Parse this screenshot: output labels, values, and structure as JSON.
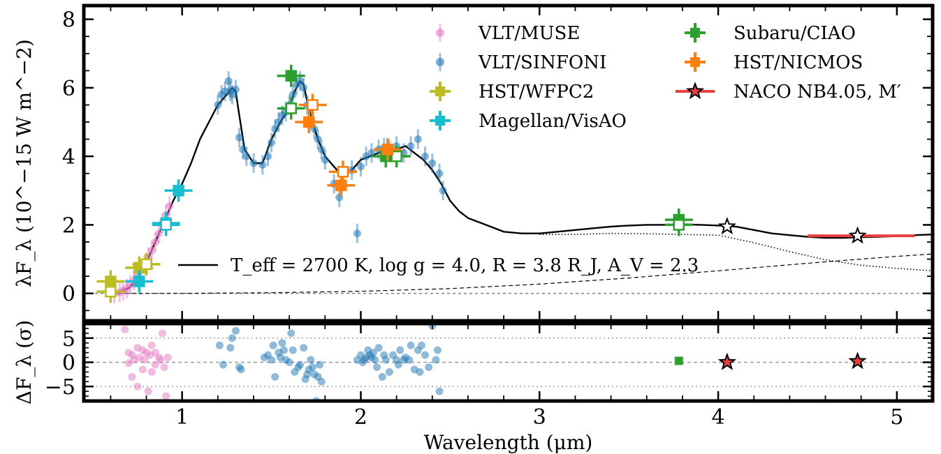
{
  "chart_data": [
    {
      "type": "scatter",
      "panel": "spectrum",
      "xlim": [
        0.45,
        5.2
      ],
      "ylim": [
        -0.8,
        8.4
      ],
      "yticks": [
        0,
        2,
        4,
        6,
        8
      ],
      "ylabel": "λF_λ (10^−15 W m^−2)",
      "grid": false,
      "legend_position": "top-right",
      "model_label": "T_eff = 2700 K, log g = 4.0, R = 3.8 R_J, A_V = 2.3",
      "model_curve": {
        "x": [
          0.6,
          0.65,
          0.7,
          0.75,
          0.8,
          0.85,
          0.9,
          0.95,
          1.0,
          1.05,
          1.1,
          1.15,
          1.2,
          1.25,
          1.28,
          1.3,
          1.32,
          1.35,
          1.4,
          1.45,
          1.5,
          1.55,
          1.6,
          1.63,
          1.66,
          1.68,
          1.7,
          1.73,
          1.76,
          1.8,
          1.85,
          1.9,
          1.95,
          2.0,
          2.05,
          2.1,
          2.15,
          2.2,
          2.25,
          2.3,
          2.35,
          2.4,
          2.45,
          2.5,
          2.55,
          2.6,
          2.7,
          2.8,
          2.9,
          3.0,
          3.1,
          3.2,
          3.3,
          3.4,
          3.5,
          3.6,
          3.7,
          3.8,
          3.9,
          4.0,
          4.1,
          4.2,
          4.3,
          4.4,
          4.5,
          4.6,
          4.7,
          4.8,
          4.9,
          5.0,
          5.1,
          5.2
        ],
        "y": [
          0.0,
          0.05,
          0.15,
          0.4,
          0.9,
          1.5,
          2.1,
          2.7,
          3.2,
          3.8,
          4.5,
          5.0,
          5.5,
          5.8,
          6.0,
          5.9,
          5.2,
          4.2,
          3.8,
          3.8,
          4.5,
          5.0,
          5.4,
          5.9,
          6.2,
          6.1,
          5.6,
          5.0,
          4.5,
          4.0,
          3.7,
          3.4,
          3.6,
          3.9,
          4.0,
          4.1,
          4.2,
          4.2,
          4.3,
          4.1,
          3.9,
          3.6,
          3.2,
          2.7,
          2.4,
          2.2,
          2.0,
          1.8,
          1.75,
          1.75,
          1.8,
          1.85,
          1.9,
          1.95,
          1.98,
          2.0,
          2.0,
          2.02,
          2.0,
          1.98,
          1.95,
          1.85,
          1.75,
          1.7,
          1.65,
          1.62,
          1.62,
          1.64,
          1.65,
          1.67,
          1.7,
          1.72
        ]
      },
      "photosphere_curve": {
        "x": [
          3.0,
          3.2,
          3.4,
          3.6,
          3.8,
          4.0,
          4.2,
          4.4,
          4.6,
          4.8,
          5.0,
          5.2
        ],
        "y": [
          1.72,
          1.72,
          1.75,
          1.74,
          1.72,
          1.7,
          1.48,
          1.22,
          0.98,
          0.82,
          0.73,
          0.66
        ]
      },
      "disk_curve": {
        "x": [
          0.6,
          1.0,
          1.5,
          2.0,
          2.5,
          3.0,
          3.5,
          4.0,
          4.5,
          5.0,
          5.2
        ],
        "y": [
          0.0,
          0.0,
          0.02,
          0.06,
          0.14,
          0.27,
          0.45,
          0.66,
          0.88,
          1.08,
          1.15
        ]
      },
      "series": [
        {
          "name": "VLT/MUSE",
          "color": "#e377c2",
          "marker": "circle",
          "x": [
            0.62,
            0.65,
            0.67,
            0.69,
            0.71,
            0.73,
            0.75,
            0.77,
            0.79,
            0.81,
            0.83,
            0.85,
            0.87,
            0.89,
            0.91,
            0.93
          ],
          "y": [
            0.0,
            0.03,
            0.08,
            0.14,
            0.25,
            0.38,
            0.52,
            0.68,
            0.85,
            1.05,
            1.25,
            1.5,
            1.75,
            2.05,
            2.3,
            2.55
          ]
        },
        {
          "name": "VLT/SINFONI",
          "color": "#1f77b4",
          "marker": "circle",
          "x": [
            1.2,
            1.22,
            1.24,
            1.26,
            1.27,
            1.28,
            1.3,
            1.32,
            1.34,
            1.36,
            1.4,
            1.45,
            1.48,
            1.5,
            1.52,
            1.54,
            1.56,
            1.58,
            1.6,
            1.62,
            1.64,
            1.66,
            1.68,
            1.7,
            1.72,
            1.74,
            1.76,
            1.78,
            1.8,
            1.85,
            1.88,
            1.95,
            1.98,
            2.0,
            2.03,
            2.06,
            2.1,
            2.13,
            2.16,
            2.2,
            2.24,
            2.28,
            2.32,
            2.36,
            2.4,
            2.44,
            2.46
          ],
          "y": [
            5.5,
            5.8,
            5.9,
            6.2,
            5.9,
            5.8,
            5.95,
            4.55,
            4.2,
            4.0,
            3.8,
            3.75,
            4.0,
            4.4,
            4.8,
            5.0,
            5.2,
            5.3,
            5.5,
            5.8,
            6.1,
            6.2,
            6.0,
            5.5,
            5.1,
            4.8,
            4.5,
            4.2,
            3.9,
            3.2,
            2.8,
            3.6,
            1.75,
            3.7,
            4.0,
            4.1,
            4.2,
            4.25,
            4.2,
            4.3,
            4.1,
            4.3,
            4.5,
            4.0,
            3.8,
            3.5,
            3.0
          ]
        },
        {
          "name": "HST/WFPC2",
          "color": "#bcbd22",
          "marker": "square",
          "x": [
            0.6,
            0.76,
            0.8,
            0.6,
            0.8
          ],
          "y": [
            0.35,
            0.75,
            0.85,
            0.05,
            0.85
          ]
        },
        {
          "name": "Magellan/VisAO",
          "color": "#17becf",
          "marker": "square",
          "x": [
            0.76,
            0.91,
            0.98,
            0.91
          ],
          "y": [
            0.35,
            2.05,
            3.0,
            2.0
          ]
        },
        {
          "name": "Subaru/CIAO",
          "color": "#2ca02c",
          "marker": "square",
          "x": [
            1.61,
            1.61,
            2.14,
            2.2,
            3.78,
            3.78
          ],
          "y": [
            6.35,
            5.4,
            4.0,
            4.0,
            2.15,
            2.0
          ]
        },
        {
          "name": "HST/NICMOS",
          "color": "#ff7f0e",
          "marker": "square",
          "x": [
            1.71,
            1.73,
            1.89,
            1.9,
            2.15
          ],
          "y": [
            5.0,
            5.5,
            3.15,
            3.55,
            4.2
          ]
        },
        {
          "name": "NACO NB4.05, M′",
          "color": "#e8403c",
          "marker": "star",
          "x": [
            4.05,
            4.78
          ],
          "y": [
            1.95,
            1.68
          ]
        }
      ]
    },
    {
      "type": "scatter",
      "panel": "residuals",
      "xlim": [
        0.45,
        5.2
      ],
      "ylim": [
        -8,
        8
      ],
      "yticks": [
        -5,
        0,
        5
      ],
      "xticks": [
        1,
        2,
        3,
        4,
        5
      ],
      "xlabel": "Wavelength (μm)",
      "ylabel": "ΔF_λ (σ)",
      "series": [
        {
          "name": "VLT/MUSE",
          "color": "#e377c2",
          "x": [
            0.68,
            0.7,
            0.7,
            0.72,
            0.72,
            0.73,
            0.75,
            0.75,
            0.76,
            0.78,
            0.78,
            0.79,
            0.8,
            0.81,
            0.82,
            0.83,
            0.83,
            0.85,
            0.85,
            0.87,
            0.88,
            0.89,
            0.9,
            0.91,
            0.92
          ],
          "y": [
            6.8,
            2.0,
            -0.2,
            1.5,
            -3.0,
            0.5,
            -5.0,
            3.0,
            1.0,
            2.5,
            -1.5,
            0.5,
            2.0,
            -6.0,
            1.5,
            3.5,
            -2.0,
            2.0,
            -0.5,
            1.0,
            0.5,
            6.0,
            -1.0,
            -7.0,
            1.0
          ]
        },
        {
          "name": "VLT/SINFONI",
          "color": "#1f77b4",
          "x": [
            1.21,
            1.23,
            1.27,
            1.28,
            1.3,
            1.32,
            1.33,
            1.46,
            1.48,
            1.5,
            1.51,
            1.52,
            1.54,
            1.55,
            1.56,
            1.57,
            1.58,
            1.6,
            1.61,
            1.62,
            1.63,
            1.65,
            1.66,
            1.68,
            1.69,
            1.7,
            1.71,
            1.72,
            1.73,
            1.74,
            1.75,
            1.76,
            1.77,
            1.78,
            1.98,
            2.0,
            2.01,
            2.02,
            2.03,
            2.04,
            2.05,
            2.06,
            2.07,
            2.08,
            2.09,
            2.1,
            2.12,
            2.13,
            2.14,
            2.16,
            2.18,
            2.2,
            2.21,
            2.22,
            2.24,
            2.25,
            2.27,
            2.28,
            2.3,
            2.32,
            2.33,
            2.34,
            2.36,
            2.38,
            2.4,
            2.42,
            2.43,
            2.44
          ],
          "y": [
            3.5,
            -0.5,
            3.0,
            5.0,
            6.5,
            -1.0,
            -1.5,
            1.0,
            1.5,
            0.5,
            3.5,
            -3.0,
            2.0,
            1.0,
            4.0,
            2.5,
            0.5,
            0.0,
            6.0,
            2.5,
            -2.0,
            -1.0,
            -0.5,
            3.0,
            -3.5,
            -2.5,
            -1.5,
            0.5,
            -1.0,
            -2.5,
            -8.0,
            -3.0,
            -0.5,
            -4.0,
            0.5,
            1.5,
            0.0,
            0.5,
            1.0,
            2.5,
            1.5,
            1.0,
            2.0,
            0.5,
            -1.0,
            3.0,
            -3.0,
            1.5,
            0.5,
            -2.0,
            1.5,
            0.5,
            -0.5,
            2.5,
            0.5,
            1.0,
            0.5,
            3.5,
            -1.5,
            2.5,
            -2.0,
            3.5,
            1.5,
            -1.0,
            7.5,
            0.5,
            2.5,
            -6.0
          ]
        },
        {
          "name": "Subaru/CIAO",
          "color": "#2ca02c",
          "marker": "square",
          "x": [
            3.78
          ],
          "y": [
            0.3
          ]
        },
        {
          "name": "NACO NB4.05, M′",
          "color": "#e8403c",
          "marker": "star",
          "x": [
            4.05,
            4.78
          ],
          "y": [
            0.0,
            0.2
          ]
        }
      ]
    }
  ]
}
